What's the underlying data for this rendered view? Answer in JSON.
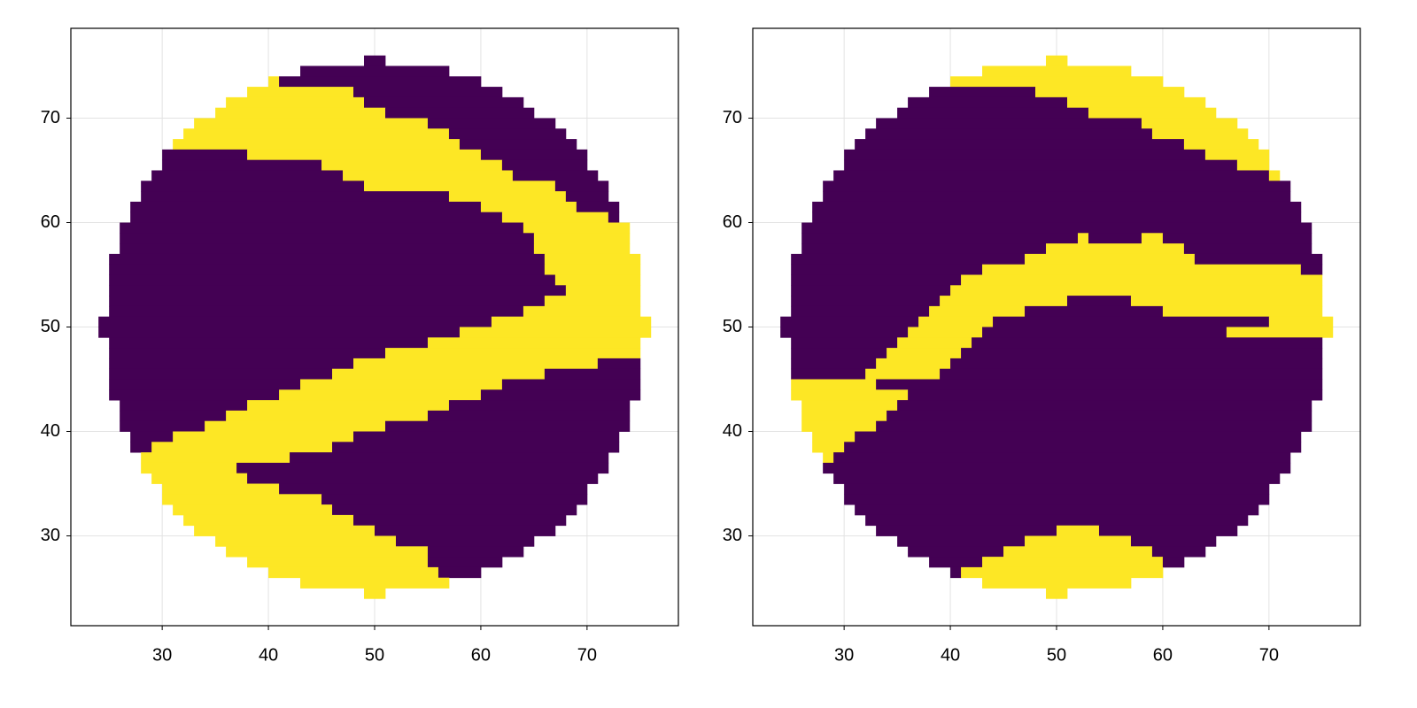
{
  "chart_data": [
    {
      "type": "heatmap",
      "xlim": [
        21.4,
        78.6
      ],
      "ylim": [
        21.4,
        78.6
      ],
      "xticks": [
        30,
        40,
        50,
        60,
        70
      ],
      "yticks": [
        30,
        40,
        50,
        60,
        70
      ],
      "grid": true,
      "colors": [
        "#440154",
        "#fde725"
      ],
      "rows": [
        {
          "y": 75,
          "x": [
            49,
            51
          ],
          "v": [
            0
          ]
        },
        {
          "y": 74,
          "x": [
            43,
            57
          ],
          "v": [
            0
          ]
        },
        {
          "y": 73,
          "x": [
            40,
            41,
            60
          ],
          "v": [
            1,
            0
          ]
        },
        {
          "y": 72,
          "x": [
            38,
            48,
            62
          ],
          "v": [
            1,
            0
          ]
        },
        {
          "y": 71,
          "x": [
            36,
            49,
            64
          ],
          "v": [
            1,
            0
          ]
        },
        {
          "y": 70,
          "x": [
            35,
            51,
            65
          ],
          "v": [
            1,
            0
          ]
        },
        {
          "y": 69,
          "x": [
            33,
            55,
            67
          ],
          "v": [
            1,
            0
          ]
        },
        {
          "y": 68,
          "x": [
            32,
            57,
            68
          ],
          "v": [
            1,
            0
          ]
        },
        {
          "y": 67,
          "x": [
            31,
            58,
            69
          ],
          "v": [
            1,
            0
          ]
        },
        {
          "y": 66,
          "x": [
            30,
            38,
            60,
            70
          ],
          "v": [
            0,
            1,
            0
          ]
        },
        {
          "y": 65,
          "x": [
            30,
            45,
            62,
            70
          ],
          "v": [
            0,
            1,
            0
          ]
        },
        {
          "y": 64,
          "x": [
            29,
            47,
            63,
            71
          ],
          "v": [
            0,
            1,
            0
          ]
        },
        {
          "y": 63,
          "x": [
            28,
            49,
            67,
            72
          ],
          "v": [
            0,
            1,
            0
          ]
        },
        {
          "y": 62,
          "x": [
            28,
            57,
            68,
            72
          ],
          "v": [
            0,
            1,
            0
          ]
        },
        {
          "y": 61,
          "x": [
            27,
            60,
            69,
            73
          ],
          "v": [
            0,
            1,
            0
          ]
        },
        {
          "y": 60,
          "x": [
            27,
            62,
            72,
            73
          ],
          "v": [
            0,
            1,
            0
          ]
        },
        {
          "y": 59,
          "x": [
            26,
            64,
            74
          ],
          "v": [
            0,
            1
          ]
        },
        {
          "y": 58,
          "x": [
            26,
            65,
            74
          ],
          "v": [
            0,
            1
          ]
        },
        {
          "y": 57,
          "x": [
            26,
            65,
            74
          ],
          "v": [
            0,
            1
          ]
        },
        {
          "y": 56,
          "x": [
            25,
            66,
            75
          ],
          "v": [
            0,
            1
          ]
        },
        {
          "y": 55,
          "x": [
            25,
            66,
            75
          ],
          "v": [
            0,
            1
          ]
        },
        {
          "y": 54,
          "x": [
            25,
            67,
            75
          ],
          "v": [
            0,
            1
          ]
        },
        {
          "y": 53,
          "x": [
            25,
            68,
            75
          ],
          "v": [
            0,
            1
          ]
        },
        {
          "y": 52,
          "x": [
            25,
            66,
            75
          ],
          "v": [
            0,
            1
          ]
        },
        {
          "y": 51,
          "x": [
            25,
            64,
            75
          ],
          "v": [
            0,
            1
          ]
        },
        {
          "y": 50,
          "x": [
            24,
            61,
            76
          ],
          "v": [
            0,
            1
          ]
        },
        {
          "y": 49,
          "x": [
            24,
            58,
            76
          ],
          "v": [
            0,
            1
          ]
        },
        {
          "y": 48,
          "x": [
            25,
            55,
            75
          ],
          "v": [
            0,
            1
          ]
        },
        {
          "y": 47,
          "x": [
            25,
            51,
            75
          ],
          "v": [
            0,
            1
          ]
        },
        {
          "y": 46,
          "x": [
            25,
            48,
            71,
            75
          ],
          "v": [
            0,
            1,
            0
          ]
        },
        {
          "y": 45,
          "x": [
            25,
            46,
            66,
            75
          ],
          "v": [
            0,
            1,
            0
          ]
        },
        {
          "y": 44,
          "x": [
            25,
            43,
            62,
            75
          ],
          "v": [
            0,
            1,
            0
          ]
        },
        {
          "y": 43,
          "x": [
            25,
            41,
            60,
            75
          ],
          "v": [
            0,
            1,
            0
          ]
        },
        {
          "y": 42,
          "x": [
            26,
            38,
            57,
            74
          ],
          "v": [
            0,
            1,
            0
          ]
        },
        {
          "y": 41,
          "x": [
            26,
            36,
            55,
            74
          ],
          "v": [
            0,
            1,
            0
          ]
        },
        {
          "y": 40,
          "x": [
            26,
            34,
            51,
            74
          ],
          "v": [
            0,
            1,
            0
          ]
        },
        {
          "y": 39,
          "x": [
            27,
            31,
            48,
            73
          ],
          "v": [
            0,
            1,
            0
          ]
        },
        {
          "y": 38,
          "x": [
            27,
            29,
            46,
            73
          ],
          "v": [
            0,
            1,
            0
          ]
        },
        {
          "y": 37,
          "x": [
            28,
            42,
            72
          ],
          "v": [
            1,
            0
          ]
        },
        {
          "y": 36,
          "x": [
            28,
            37,
            72
          ],
          "v": [
            1,
            0
          ]
        },
        {
          "y": 35,
          "x": [
            29,
            38,
            71
          ],
          "v": [
            1,
            0
          ]
        },
        {
          "y": 34,
          "x": [
            30,
            41,
            70
          ],
          "v": [
            1,
            0
          ]
        },
        {
          "y": 33,
          "x": [
            30,
            45,
            70
          ],
          "v": [
            1,
            0
          ]
        },
        {
          "y": 32,
          "x": [
            31,
            46,
            69
          ],
          "v": [
            1,
            0
          ]
        },
        {
          "y": 31,
          "x": [
            32,
            48,
            68
          ],
          "v": [
            1,
            0
          ]
        },
        {
          "y": 30,
          "x": [
            33,
            50,
            67
          ],
          "v": [
            1,
            0
          ]
        },
        {
          "y": 29,
          "x": [
            35,
            52,
            65
          ],
          "v": [
            1,
            0
          ]
        },
        {
          "y": 28,
          "x": [
            36,
            55,
            64
          ],
          "v": [
            1,
            0
          ]
        },
        {
          "y": 27,
          "x": [
            38,
            55,
            62
          ],
          "v": [
            1,
            0
          ]
        },
        {
          "y": 26,
          "x": [
            40,
            56,
            60
          ],
          "v": [
            1,
            0
          ]
        },
        {
          "y": 25,
          "x": [
            43,
            57
          ],
          "v": [
            1
          ]
        },
        {
          "y": 24,
          "x": [
            49,
            51
          ],
          "v": [
            1
          ]
        }
      ]
    },
    {
      "type": "heatmap",
      "xlim": [
        21.4,
        78.6
      ],
      "ylim": [
        21.4,
        78.6
      ],
      "xticks": [
        30,
        40,
        50,
        60,
        70
      ],
      "yticks": [
        30,
        40,
        50,
        60,
        70
      ],
      "grid": true,
      "colors": [
        "#440154",
        "#fde725"
      ],
      "rows": [
        {
          "y": 75,
          "x": [
            49,
            51
          ],
          "v": [
            1
          ]
        },
        {
          "y": 74,
          "x": [
            43,
            57
          ],
          "v": [
            1
          ]
        },
        {
          "y": 73,
          "x": [
            40,
            60
          ],
          "v": [
            1
          ]
        },
        {
          "y": 72,
          "x": [
            38,
            48,
            62
          ],
          "v": [
            0,
            1
          ]
        },
        {
          "y": 71,
          "x": [
            36,
            51,
            64
          ],
          "v": [
            0,
            1
          ]
        },
        {
          "y": 70,
          "x": [
            35,
            53,
            65
          ],
          "v": [
            0,
            1
          ]
        },
        {
          "y": 69,
          "x": [
            33,
            58,
            67
          ],
          "v": [
            0,
            1
          ]
        },
        {
          "y": 68,
          "x": [
            32,
            59,
            68
          ],
          "v": [
            0,
            1
          ]
        },
        {
          "y": 67,
          "x": [
            31,
            62,
            69
          ],
          "v": [
            0,
            1
          ]
        },
        {
          "y": 66,
          "x": [
            30,
            64,
            70
          ],
          "v": [
            0,
            1
          ]
        },
        {
          "y": 65,
          "x": [
            30,
            67,
            70
          ],
          "v": [
            0,
            1
          ]
        },
        {
          "y": 64,
          "x": [
            29,
            70,
            71
          ],
          "v": [
            0,
            1
          ]
        },
        {
          "y": 63,
          "x": [
            28,
            72
          ],
          "v": [
            0
          ]
        },
        {
          "y": 62,
          "x": [
            28,
            72
          ],
          "v": [
            0
          ]
        },
        {
          "y": 61,
          "x": [
            27,
            73
          ],
          "v": [
            0
          ]
        },
        {
          "y": 60,
          "x": [
            27,
            73
          ],
          "v": [
            0
          ]
        },
        {
          "y": 59,
          "x": [
            26,
            74
          ],
          "v": [
            0
          ]
        },
        {
          "y": 58,
          "x": [
            26,
            52,
            53,
            58,
            60,
            74
          ],
          "v": [
            0,
            1,
            0,
            1,
            0
          ]
        },
        {
          "y": 57,
          "x": [
            26,
            49,
            62,
            74
          ],
          "v": [
            0,
            1,
            0
          ]
        },
        {
          "y": 56,
          "x": [
            25,
            47,
            63,
            75
          ],
          "v": [
            0,
            1,
            0
          ]
        },
        {
          "y": 55,
          "x": [
            25,
            43,
            73,
            75
          ],
          "v": [
            0,
            1,
            0
          ]
        },
        {
          "y": 54,
          "x": [
            25,
            41,
            75
          ],
          "v": [
            0,
            1
          ]
        },
        {
          "y": 53,
          "x": [
            25,
            40,
            75
          ],
          "v": [
            0,
            1
          ]
        },
        {
          "y": 52,
          "x": [
            25,
            39,
            51,
            57,
            75
          ],
          "v": [
            0,
            1,
            0,
            1
          ]
        },
        {
          "y": 51,
          "x": [
            25,
            38,
            47,
            60,
            75
          ],
          "v": [
            0,
            1,
            0,
            1
          ]
        },
        {
          "y": 50,
          "x": [
            24,
            37,
            44,
            70,
            76
          ],
          "v": [
            0,
            1,
            0,
            1
          ]
        },
        {
          "y": 49,
          "x": [
            24,
            36,
            43,
            66,
            76
          ],
          "v": [
            0,
            1,
            0,
            1
          ]
        },
        {
          "y": 48,
          "x": [
            25,
            35,
            42,
            75
          ],
          "v": [
            0,
            1,
            0
          ]
        },
        {
          "y": 47,
          "x": [
            25,
            34,
            41,
            75
          ],
          "v": [
            0,
            1,
            0
          ]
        },
        {
          "y": 46,
          "x": [
            25,
            33,
            40,
            75
          ],
          "v": [
            0,
            1,
            0
          ]
        },
        {
          "y": 45,
          "x": [
            25,
            32,
            39,
            75
          ],
          "v": [
            0,
            1,
            0
          ]
        },
        {
          "y": 44,
          "x": [
            25,
            33,
            75
          ],
          "v": [
            1,
            0
          ]
        },
        {
          "y": 43,
          "x": [
            25,
            36,
            75
          ],
          "v": [
            1,
            0
          ]
        },
        {
          "y": 42,
          "x": [
            26,
            35,
            74
          ],
          "v": [
            1,
            0
          ]
        },
        {
          "y": 41,
          "x": [
            26,
            34,
            74
          ],
          "v": [
            1,
            0
          ]
        },
        {
          "y": 40,
          "x": [
            26,
            33,
            74
          ],
          "v": [
            1,
            0
          ]
        },
        {
          "y": 39,
          "x": [
            27,
            31,
            73
          ],
          "v": [
            1,
            0
          ]
        },
        {
          "y": 38,
          "x": [
            27,
            30,
            73
          ],
          "v": [
            1,
            0
          ]
        },
        {
          "y": 37,
          "x": [
            28,
            29,
            72
          ],
          "v": [
            1,
            0
          ]
        },
        {
          "y": 36,
          "x": [
            28,
            72
          ],
          "v": [
            0
          ]
        },
        {
          "y": 35,
          "x": [
            29,
            71
          ],
          "v": [
            0
          ]
        },
        {
          "y": 34,
          "x": [
            30,
            70
          ],
          "v": [
            0
          ]
        },
        {
          "y": 33,
          "x": [
            30,
            70
          ],
          "v": [
            0
          ]
        },
        {
          "y": 32,
          "x": [
            31,
            69
          ],
          "v": [
            0
          ]
        },
        {
          "y": 31,
          "x": [
            32,
            68
          ],
          "v": [
            0
          ]
        },
        {
          "y": 30,
          "x": [
            33,
            50,
            54,
            67
          ],
          "v": [
            0,
            1,
            0
          ]
        },
        {
          "y": 29,
          "x": [
            35,
            47,
            57,
            65
          ],
          "v": [
            0,
            1,
            0
          ]
        },
        {
          "y": 28,
          "x": [
            36,
            45,
            59,
            64
          ],
          "v": [
            0,
            1,
            0
          ]
        },
        {
          "y": 27,
          "x": [
            38,
            43,
            60,
            62
          ],
          "v": [
            0,
            1,
            0
          ]
        },
        {
          "y": 26,
          "x": [
            40,
            41,
            60
          ],
          "v": [
            0,
            1
          ]
        },
        {
          "y": 25,
          "x": [
            43,
            57
          ],
          "v": [
            1
          ]
        },
        {
          "y": 24,
          "x": [
            49,
            51
          ],
          "v": [
            1
          ]
        }
      ]
    }
  ]
}
